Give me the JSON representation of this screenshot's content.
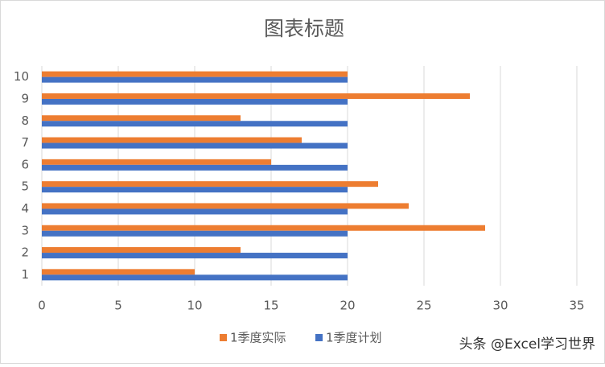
{
  "chart_data": {
    "type": "barh",
    "title": "图表标题",
    "categories": [
      "1",
      "2",
      "3",
      "4",
      "5",
      "6",
      "7",
      "8",
      "9",
      "10"
    ],
    "series": [
      {
        "name": "1季度实际",
        "color": "#ed7d31",
        "values": [
          10,
          13,
          29,
          24,
          22,
          15,
          17,
          13,
          28,
          20
        ]
      },
      {
        "name": "1季度计划",
        "color": "#4472c4",
        "values": [
          20,
          20,
          20,
          20,
          20,
          20,
          20,
          20,
          20,
          20
        ]
      }
    ],
    "xlim": [
      0,
      35
    ],
    "xticks": [
      0,
      5,
      10,
      15,
      20,
      25,
      30,
      35
    ],
    "grid": true,
    "legend": "bottom",
    "watermark": "头条 @Excel学习世界"
  }
}
